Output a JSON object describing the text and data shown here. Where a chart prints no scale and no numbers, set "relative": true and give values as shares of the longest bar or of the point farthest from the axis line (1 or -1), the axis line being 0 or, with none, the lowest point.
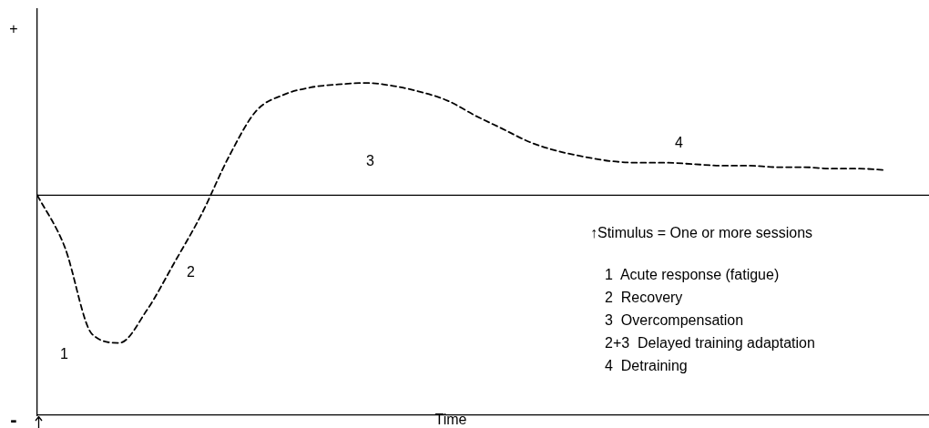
{
  "chart_data": {
    "type": "line",
    "relative": true,
    "xlabel": "Time",
    "categories": [
      null,
      null,
      null,
      null,
      null,
      null,
      null,
      null,
      null,
      null,
      null,
      null,
      null,
      null,
      null,
      null,
      null,
      null,
      null,
      null,
      null,
      null,
      null,
      null,
      null,
      null,
      null,
      null,
      null,
      null,
      null,
      null
    ],
    "series": [
      {
        "color": "#000000",
        "values": [
          0,
          -0.35,
          -0.94,
          -1,
          -0.78,
          -0.46,
          -0.13,
          0.26,
          0.57,
          0.68,
          0.73,
          0.75,
          0.76,
          0.74,
          0.7,
          0.64,
          0.54,
          0.45,
          0.36,
          0.3,
          0.26,
          0.23,
          0.22,
          0.22,
          0.21,
          0.2,
          0.2,
          0.19,
          0.19,
          0.18,
          0.18,
          0.17
        ]
      }
    ],
    "line_style": "dashed",
    "marker": "none",
    "legend": false,
    "ref_lines": [
      {
        "axis": "y",
        "value": 0
      }
    ],
    "annotations": [
      "+",
      "-",
      "1",
      "2",
      "3",
      "4",
      "↑Stimulus = One or more sessions",
      "1  Acute response (fatigue)",
      "2  Recovery",
      "3  Overcompensation",
      "2+3  Delayed training adaptation",
      "4  Detraining"
    ]
  }
}
